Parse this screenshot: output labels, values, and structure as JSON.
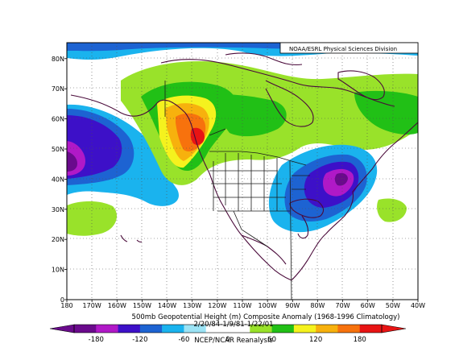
{
  "credit": "NOAA/ESRL Physical Sciences Division",
  "title_line1": "500mb Geopotential Height (m) Composite Anomaly (1968-1996 Climatology)",
  "title_line2": "2/20/84-1/9/81-1/22/01",
  "source": "NCEP/NCAR Reanalysis",
  "colorbar": {
    "colors": [
      "#6a0a8c",
      "#b019c7",
      "#3d10c8",
      "#1d63d2",
      "#1ab3ee",
      "#9be3f5",
      "#ffffff",
      "#ffffff",
      "#99e22a",
      "#21c016",
      "#f5f21e",
      "#f7b10d",
      "#f7720d",
      "#e81414"
    ],
    "tick_labels": [
      "-180",
      "-120",
      "-60",
      "0",
      "60",
      "120",
      "180"
    ]
  },
  "lat_labels": [
    "0",
    "10N",
    "20N",
    "30N",
    "40N",
    "50N",
    "60N",
    "70N",
    "80N"
  ],
  "lon_labels": [
    "180",
    "170W",
    "160W",
    "150W",
    "140W",
    "130W",
    "120W",
    "110W",
    "100W",
    "90W",
    "80W",
    "70W",
    "60W",
    "50W",
    "40W"
  ]
}
